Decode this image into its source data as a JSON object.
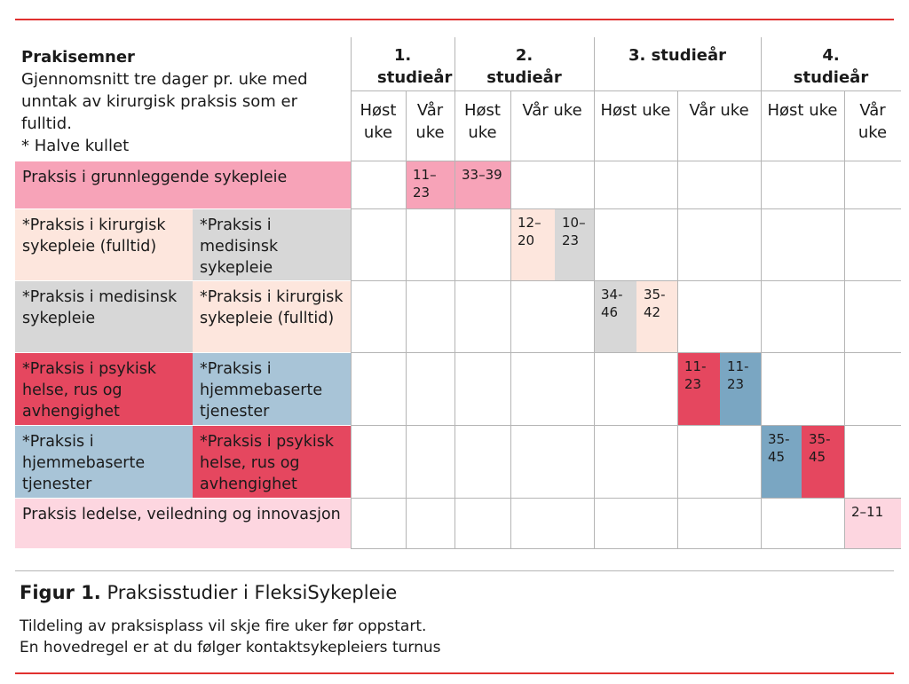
{
  "header": {
    "title": "Prakisemner",
    "description": "Gjennomsnitt tre dager pr. uke med unntak av kirurgisk praksis som er fulltid.",
    "note": "* Halve kullet"
  },
  "years": [
    "1. studieår",
    "2. studieår",
    "3. studieår",
    "4. studieår"
  ],
  "seasons": [
    "Høst uke",
    "Vår uke",
    "Høst uke",
    "Vår uke",
    "Høst uke",
    "Vår uke",
    "Høst uke",
    "Vår uke"
  ],
  "rows": [
    {
      "labels": [
        "Praksis i grunnleggende sykepleie"
      ],
      "weeks": [
        "11–23",
        "33–39"
      ]
    },
    {
      "labels": [
        "*Praksis i kirurgisk sykepleie (fulltid)",
        "*Praksis i medisinsk sykepleie"
      ],
      "weeks": [
        "12–20",
        "10–23"
      ]
    },
    {
      "labels": [
        "*Praksis i medisinsk sykepleie",
        "*Praksis i kirurgisk sykepleie (fulltid)"
      ],
      "weeks": [
        "34-46",
        "35-42"
      ]
    },
    {
      "labels": [
        "*Praksis i psykisk helse, rus og avhengighet",
        "*Praksis i hjemmebaserte tjenester"
      ],
      "weeks": [
        "11-23",
        "11-23"
      ]
    },
    {
      "labels": [
        "*Praksis i hjemmebaserte tjenester",
        "*Praksis i psykisk helse, rus og avhengighet"
      ],
      "weeks": [
        "35-45",
        "35-45"
      ]
    },
    {
      "labels": [
        "Praksis ledelse, veiledning og innovasjon"
      ],
      "weeks": [
        "2–11"
      ]
    }
  ],
  "caption": {
    "label": "Figur 1.",
    "title": "Praksisstudier i FleksiSykepleie",
    "notes": [
      "Tildeling av praksisplass vil skje fire uker før oppstart.",
      "En hovedregel er at du følger kontaktsykepleiers turnus"
    ]
  }
}
